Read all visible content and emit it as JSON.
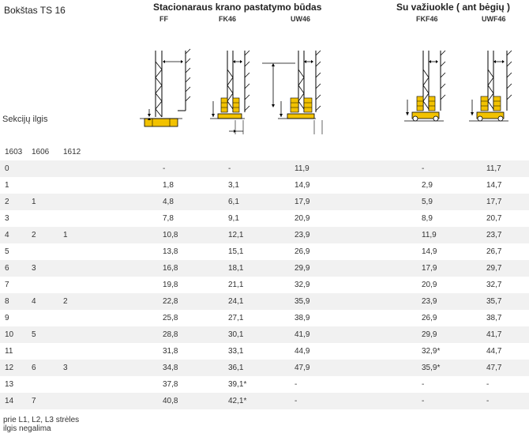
{
  "title": "Bokštas TS 16",
  "header_stationary": "Stacionaraus krano pastatymo būdas",
  "header_rail": "Su važiuokle ( ant bėgių )",
  "sub_headers": [
    "FF",
    "FK46",
    "UW46",
    "FKF46",
    "UWF46"
  ],
  "section_label": "Sekcijų ilgis",
  "section_columns": [
    "1603",
    "1606",
    "1612"
  ],
  "rows": [
    {
      "c1": "0",
      "c2": "",
      "c3": "",
      "ff": "-",
      "fk46": "-",
      "uw46": "11,9",
      "fkf46": "-",
      "uwf46": "11,7"
    },
    {
      "c1": "1",
      "c2": "",
      "c3": "",
      "ff": "1,8",
      "fk46": "3,1",
      "uw46": "14,9",
      "fkf46": "2,9",
      "uwf46": "14,7"
    },
    {
      "c1": "2",
      "c2": "1",
      "c3": "",
      "ff": "4,8",
      "fk46": "6,1",
      "uw46": "17,9",
      "fkf46": "5,9",
      "uwf46": "17,7"
    },
    {
      "c1": "3",
      "c2": "",
      "c3": "",
      "ff": "7,8",
      "fk46": "9,1",
      "uw46": "20,9",
      "fkf46": "8,9",
      "uwf46": "20,7"
    },
    {
      "c1": "4",
      "c2": "2",
      "c3": "1",
      "ff": "10,8",
      "fk46": "12,1",
      "uw46": "23,9",
      "fkf46": "11,9",
      "uwf46": "23,7"
    },
    {
      "c1": "5",
      "c2": "",
      "c3": "",
      "ff": "13,8",
      "fk46": "15,1",
      "uw46": "26,9",
      "fkf46": "14,9",
      "uwf46": "26,7"
    },
    {
      "c1": "6",
      "c2": "3",
      "c3": "",
      "ff": "16,8",
      "fk46": "18,1",
      "uw46": "29,9",
      "fkf46": "17,9",
      "uwf46": "29,7"
    },
    {
      "c1": "7",
      "c2": "",
      "c3": "",
      "ff": "19,8",
      "fk46": "21,1",
      "uw46": "32,9",
      "fkf46": "20,9",
      "uwf46": "32,7"
    },
    {
      "c1": "8",
      "c2": "4",
      "c3": "2",
      "ff": "22,8",
      "fk46": "24,1",
      "uw46": "35,9",
      "fkf46": "23,9",
      "uwf46": "35,7"
    },
    {
      "c1": "9",
      "c2": "",
      "c3": "",
      "ff": "25,8",
      "fk46": "27,1",
      "uw46": "38,9",
      "fkf46": "26,9",
      "uwf46": "38,7"
    },
    {
      "c1": "10",
      "c2": "5",
      "c3": "",
      "ff": "28,8",
      "fk46": "30,1",
      "uw46": "41,9",
      "fkf46": "29,9",
      "uwf46": "41,7"
    },
    {
      "c1": "11",
      "c2": "",
      "c3": "",
      "ff": "31,8",
      "fk46": "33,1",
      "uw46": "44,9",
      "fkf46": "32,9*",
      "uwf46": "44,7"
    },
    {
      "c1": "12",
      "c2": "6",
      "c3": "3",
      "ff": "34,8",
      "fk46": "36,1",
      "uw46": "47,9",
      "fkf46": "35,9*",
      "uwf46": "47,7"
    },
    {
      "c1": "13",
      "c2": "",
      "c3": "",
      "ff": "37,8",
      "fk46": "39,1*",
      "uw46": "-",
      "fkf46": "-",
      "uwf46": "-"
    },
    {
      "c1": "14",
      "c2": "7",
      "c3": "",
      "ff": "40,8",
      "fk46": "42,1*",
      "uw46": "-",
      "fkf46": "-",
      "uwf46": "-"
    }
  ],
  "footnote_line1": "prie L1, L2, L3 strėles",
  "footnote_line2": "ilgis negalima",
  "colors": {
    "yellow": "#f2c200",
    "shade": "#f1f1f1"
  }
}
